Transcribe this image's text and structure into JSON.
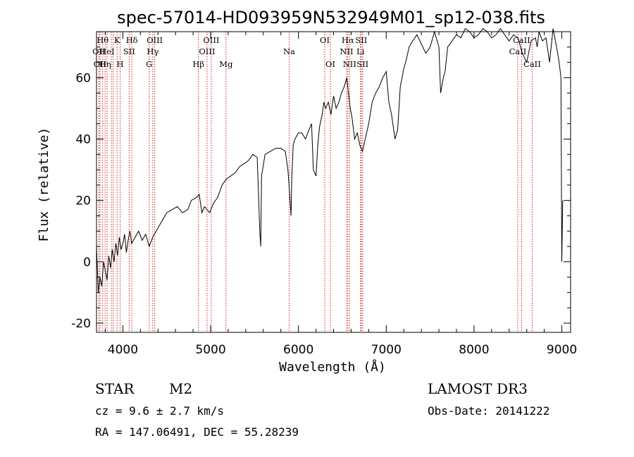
{
  "chart_data": {
    "type": "line",
    "title": "spec-57014-HD093959N532949M01_sp12-038.fits",
    "xlabel": "Wavelength (Å)",
    "ylabel": "Flux (relative)",
    "xlim": [
      3700,
      9100
    ],
    "ylim": [
      -23,
      75
    ],
    "xticks": [
      4000,
      5000,
      6000,
      7000,
      8000,
      9000
    ],
    "yticks": [
      -20,
      0,
      20,
      40,
      60
    ],
    "series": [
      {
        "name": "flux",
        "x": [
          3700,
          3720,
          3740,
          3760,
          3780,
          3800,
          3820,
          3840,
          3860,
          3880,
          3900,
          3920,
          3940,
          3960,
          3980,
          4000,
          4020,
          4040,
          4060,
          4080,
          4100,
          4140,
          4180,
          4220,
          4260,
          4300,
          4340,
          4380,
          4420,
          4460,
          4500,
          4560,
          4620,
          4680,
          4740,
          4780,
          4840,
          4870,
          4900,
          4930,
          4960,
          4990,
          5030,
          5080,
          5130,
          5180,
          5230,
          5280,
          5330,
          5380,
          5430,
          5480,
          5530,
          5560,
          5570,
          5580,
          5620,
          5680,
          5740,
          5800,
          5850,
          5880,
          5900,
          5915,
          5925,
          5940,
          5960,
          6000,
          6040,
          6080,
          6120,
          6150,
          6170,
          6200,
          6220,
          6240,
          6270,
          6290,
          6310,
          6340,
          6370,
          6400,
          6430,
          6460,
          6490,
          6520,
          6550,
          6570,
          6590,
          6610,
          6640,
          6670,
          6700,
          6730,
          6760,
          6800,
          6840,
          6880,
          6920,
          6960,
          7000,
          7030,
          7060,
          7100,
          7130,
          7160,
          7180,
          7200,
          7230,
          7260,
          7300,
          7350,
          7400,
          7450,
          7500,
          7550,
          7600,
          7620,
          7650,
          7670,
          7700,
          7750,
          7800,
          7850,
          7900,
          7950,
          8000,
          8050,
          8100,
          8150,
          8200,
          8250,
          8300,
          8350,
          8400,
          8450,
          8500,
          8550,
          8600,
          8650,
          8700,
          8720,
          8740,
          8780,
          8820,
          8860,
          8900,
          8940,
          8970,
          8990,
          9000,
          9010
        ],
        "y": [
          5,
          -10,
          -5,
          -8,
          0,
          -3,
          -6,
          2,
          -2,
          4,
          0,
          6,
          2,
          8,
          4,
          6,
          9,
          3,
          7,
          10,
          6,
          8,
          10,
          7,
          9,
          5,
          8,
          10,
          12,
          14,
          16,
          17,
          18,
          16,
          17,
          20,
          21,
          22,
          16,
          18,
          17,
          16,
          19,
          21,
          25,
          27,
          28,
          29,
          31,
          32,
          33,
          35,
          34,
          10,
          5,
          28,
          35,
          36,
          37,
          37,
          36,
          30,
          22,
          15,
          28,
          38,
          40,
          42,
          42,
          40,
          43,
          45,
          30,
          28,
          38,
          44,
          48,
          52,
          50,
          52,
          48,
          54,
          50,
          52,
          55,
          57,
          60,
          55,
          50,
          47,
          40,
          42,
          38,
          36,
          40,
          45,
          52,
          55,
          57,
          60,
          62,
          52,
          48,
          40,
          43,
          57,
          60,
          63,
          66,
          70,
          72,
          74,
          71,
          68,
          70,
          75,
          70,
          55,
          60,
          62,
          70,
          72,
          74,
          73,
          76,
          75,
          73,
          74,
          76,
          75,
          73,
          74,
          76,
          74,
          72,
          74,
          73,
          68,
          65,
          72,
          73,
          70,
          75,
          72,
          73,
          65,
          76,
          70,
          65,
          60,
          0,
          20
        ]
      }
    ],
    "lines": [
      {
        "wave": 3727,
        "labels": [
          "OII"
        ],
        "row": 1
      },
      {
        "wave": 3740,
        "labels": [
          "OII"
        ],
        "row": 2
      },
      {
        "wave": 3770,
        "labels": [
          "Hθ"
        ],
        "row": 0
      },
      {
        "wave": 3798,
        "labels": [
          "Hη"
        ],
        "row": 2
      },
      {
        "wave": 3820,
        "labels": [
          "HeI"
        ],
        "row": 1
      },
      {
        "wave": 3869,
        "labels": [],
        "row": 0
      },
      {
        "wave": 3889,
        "labels": [],
        "row": 0
      },
      {
        "wave": 3934,
        "labels": [
          "K"
        ],
        "row": 0
      },
      {
        "wave": 3969,
        "labels": [
          "H"
        ],
        "row": 2
      },
      {
        "wave": 4072,
        "labels": [
          "SII"
        ],
        "row": 1
      },
      {
        "wave": 4102,
        "labels": [
          "Hδ"
        ],
        "row": 0
      },
      {
        "wave": 4300,
        "labels": [
          "G"
        ],
        "row": 2
      },
      {
        "wave": 4341,
        "labels": [
          "Hγ"
        ],
        "row": 1
      },
      {
        "wave": 4363,
        "labels": [
          "OIII"
        ],
        "row": 0
      },
      {
        "wave": 4861,
        "labels": [
          "Hβ"
        ],
        "row": 2
      },
      {
        "wave": 4959,
        "labels": [
          "OIII"
        ],
        "row": 1
      },
      {
        "wave": 5007,
        "labels": [
          "OIII"
        ],
        "row": 0
      },
      {
        "wave": 5175,
        "labels": [
          "Mg"
        ],
        "row": 2
      },
      {
        "wave": 5894,
        "labels": [
          "Na"
        ],
        "row": 1
      },
      {
        "wave": 6300,
        "labels": [
          "OI"
        ],
        "row": 0
      },
      {
        "wave": 6364,
        "labels": [
          "OI"
        ],
        "row": 2
      },
      {
        "wave": 6548,
        "labels": [
          "NII"
        ],
        "row": 1
      },
      {
        "wave": 6563,
        "labels": [
          "Hα"
        ],
        "row": 0
      },
      {
        "wave": 6583,
        "labels": [
          "NII"
        ],
        "row": 2
      },
      {
        "wave": 6707,
        "labels": [
          "Li"
        ],
        "row": 1
      },
      {
        "wave": 6716,
        "labels": [
          "SII"
        ],
        "row": 0
      },
      {
        "wave": 6731,
        "labels": [
          "SII"
        ],
        "row": 2
      },
      {
        "wave": 8498,
        "labels": [
          "CaII"
        ],
        "row": 1
      },
      {
        "wave": 8542,
        "labels": [
          "CaII"
        ],
        "row": 0
      },
      {
        "wave": 8662,
        "labels": [
          "CaII"
        ],
        "row": 2
      }
    ]
  },
  "info": {
    "class": "STAR",
    "subclass": "M2",
    "cz": "cz = 9.6 ± 2.7 km/s",
    "radec": "RA = 147.06491, DEC =  55.28239",
    "survey": "LAMOST DR3",
    "obsdate": "Obs-Date: 20141222"
  },
  "colors": {
    "spectrum": "#000000",
    "marker": "#cc2222",
    "axes": "#000000"
  }
}
